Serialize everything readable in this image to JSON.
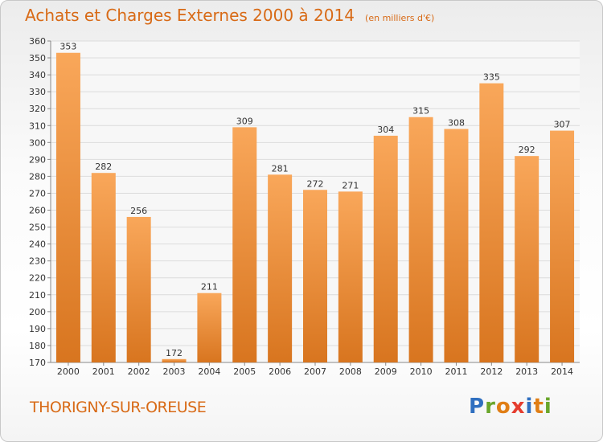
{
  "header": {
    "title": "Achats et Charges Externes 2000 à 2014",
    "subtitle": "(en milliers d'€)"
  },
  "footer": {
    "city": "THORIGNY-SUR-OREUSE",
    "logo": "Proxiti"
  },
  "colors": {
    "accent": "#d86a16",
    "bar_top": "#f9a75a",
    "bar_bottom": "#d8751f",
    "logo_letters": [
      "#2f6fc0",
      "#6aa62b",
      "#e07e15",
      "#e53d2f",
      "#2f6fc0",
      "#e07e15",
      "#6aa62b"
    ]
  },
  "chart_data": {
    "type": "bar",
    "title": "Achats et Charges Externes 2000 à 2014",
    "subtitle": "(en milliers d'€)",
    "xlabel": "",
    "ylabel": "",
    "categories": [
      "2000",
      "2001",
      "2002",
      "2003",
      "2004",
      "2005",
      "2006",
      "2007",
      "2008",
      "2009",
      "2010",
      "2011",
      "2012",
      "2013",
      "2014"
    ],
    "values": [
      353,
      282,
      256,
      172,
      211,
      309,
      281,
      272,
      271,
      304,
      315,
      308,
      335,
      292,
      307
    ],
    "ylim": [
      170,
      360
    ],
    "ytick_step": 10,
    "grid": true
  }
}
